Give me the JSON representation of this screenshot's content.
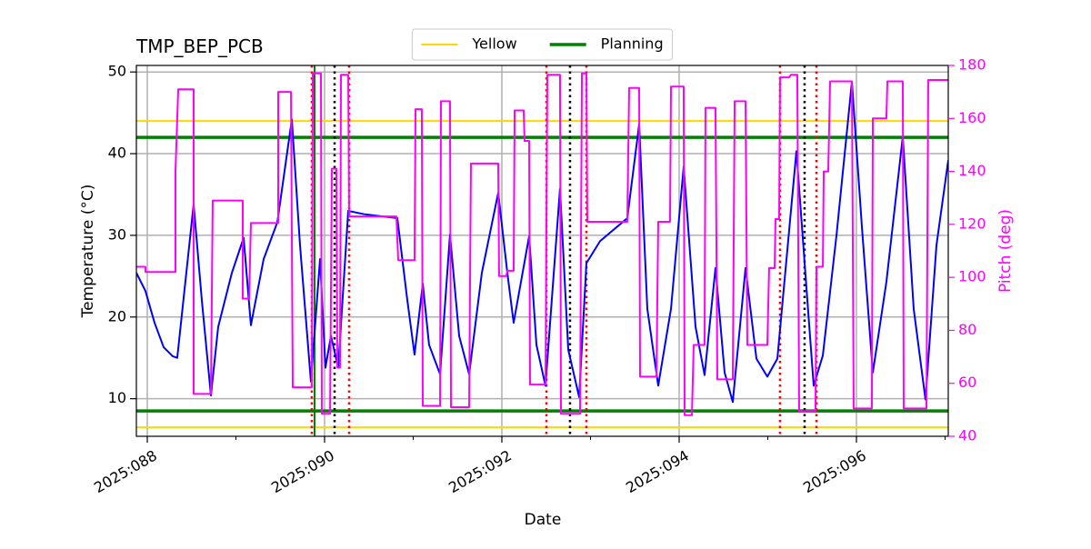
{
  "chart_data": {
    "type": "line",
    "title": "TMP_BEP_PCB",
    "xlabel": "Date",
    "ylabel": "Temperature (°C)",
    "y2label": "Pitch (deg)",
    "grid": true,
    "legend": "top",
    "xlim": [
      87.877,
      97.036
    ],
    "xticks": [
      {
        "value": 88,
        "label": "2025:088"
      },
      {
        "value": 90,
        "label": "2025:090"
      },
      {
        "value": 92,
        "label": "2025:092"
      },
      {
        "value": 94,
        "label": "2025:094"
      },
      {
        "value": 96,
        "label": "2025:096"
      }
    ],
    "xminor_ticks": [
      89,
      91,
      93,
      95,
      97
    ],
    "ylim": [
      5.4,
      50.8
    ],
    "yticks": [
      10,
      20,
      30,
      40,
      50
    ],
    "y2lim": [
      40,
      180
    ],
    "y2ticks": [
      40,
      60,
      80,
      100,
      120,
      140,
      160,
      180
    ],
    "y2color": "#ff00ff",
    "series": [
      {
        "color": "#0000ff",
        "x": [
          87.877,
          87.979,
          88.082,
          88.185,
          88.287,
          88.338,
          88.523,
          88.615,
          88.718,
          88.8,
          88.954,
          89.087,
          89.169,
          89.313,
          89.467,
          89.631,
          89.723,
          89.846,
          89.949,
          90.01,
          90.072,
          90.154,
          90.267,
          90.441,
          90.821,
          90.933,
          91.015,
          91.108,
          91.179,
          91.303,
          91.415,
          91.518,
          91.631,
          91.774,
          91.959,
          92.062,
          92.133,
          92.308,
          92.39,
          92.492,
          92.656,
          92.749,
          92.872,
          92.954,
          93.108,
          93.415,
          93.549,
          93.641,
          93.764,
          93.908,
          94.051,
          94.185,
          94.287,
          94.41,
          94.513,
          94.605,
          94.749,
          94.872,
          94.995,
          95.108,
          95.323,
          95.446,
          95.518,
          95.621,
          95.774,
          95.949,
          96.062,
          96.185,
          96.338,
          96.523,
          96.646,
          96.779,
          96.903,
          97.036
        ],
        "values": [
          25.4,
          23.2,
          19.3,
          16.3,
          15.2,
          15,
          33.8,
          22.1,
          10.4,
          18.8,
          25.4,
          29.7,
          19,
          27.1,
          31.6,
          44.2,
          28.8,
          12.1,
          27.1,
          13.8,
          17.7,
          13.8,
          33,
          32.6,
          32.1,
          22.1,
          15.4,
          24.1,
          16.6,
          13,
          30.1,
          17.7,
          13,
          25.4,
          35.2,
          25.4,
          19.3,
          29.9,
          16.6,
          11.6,
          35.7,
          16,
          10.2,
          26.6,
          29.3,
          32.1,
          43.6,
          21,
          11.6,
          21,
          38.4,
          18.8,
          12.9,
          26,
          13.2,
          9.6,
          26,
          14.9,
          12.7,
          14.9,
          40.3,
          22.1,
          11.6,
          15.3,
          29.9,
          48.8,
          31,
          13.2,
          24.3,
          42.1,
          21,
          9.9,
          28.8,
          39.2
        ]
      },
      {
        "color": "#ff00ff",
        "axis": "y2",
        "x": [
          87.877,
          87.979,
          87.979,
          88.318,
          88.318,
          88.349,
          88.523,
          88.523,
          88.718,
          88.738,
          89.077,
          89.077,
          89.149,
          89.169,
          89.477,
          89.477,
          89.621,
          89.641,
          89.856,
          89.867,
          89.959,
          89.969,
          90.062,
          90.082,
          90.133,
          90.144,
          90.174,
          90.185,
          90.267,
          90.277,
          90.81,
          90.831,
          91.015,
          91.026,
          91.097,
          91.108,
          91.303,
          91.313,
          91.415,
          91.426,
          91.631,
          91.651,
          91.959,
          91.969,
          92.051,
          92.062,
          92.133,
          92.144,
          92.246,
          92.256,
          92.308,
          92.318,
          92.492,
          92.513,
          92.656,
          92.667,
          92.882,
          92.903,
          92.954,
          92.964,
          93.415,
          93.436,
          93.549,
          93.559,
          93.744,
          93.764,
          93.897,
          93.908,
          94.051,
          94.062,
          94.144,
          94.164,
          94.287,
          94.297,
          94.41,
          94.431,
          94.605,
          94.626,
          94.749,
          94.769,
          94.995,
          95.015,
          95.077,
          95.087,
          95.128,
          95.138,
          95.241,
          95.262,
          95.333,
          95.354,
          95.538,
          95.549,
          95.621,
          95.631,
          95.682,
          95.703,
          95.949,
          95.969,
          96.174,
          96.185,
          96.338,
          96.349,
          96.523,
          96.533,
          96.79,
          96.81,
          97.036
        ],
        "values": [
          104,
          104,
          102,
          102,
          140,
          171,
          171,
          56,
          56,
          129,
          129,
          92,
          92,
          120.5,
          120.5,
          170,
          170,
          58.5,
          58.5,
          177,
          177,
          48.5,
          48.5,
          141,
          141,
          66,
          66,
          176.5,
          176.5,
          123,
          123,
          106.5,
          106.5,
          163.5,
          163.5,
          51.5,
          51.5,
          166.5,
          166.5,
          51,
          51,
          143,
          143,
          100.5,
          100.5,
          102.5,
          102.5,
          163,
          163,
          151.5,
          151.5,
          59.5,
          59.5,
          176.5,
          176.5,
          48.5,
          48.5,
          177,
          177,
          121,
          121,
          171.5,
          171.5,
          62.5,
          62.5,
          121,
          121,
          172,
          172,
          48,
          48,
          74.5,
          74.5,
          164,
          164,
          61.5,
          61.5,
          166.5,
          166.5,
          74.5,
          74.5,
          103.5,
          103.5,
          122,
          122,
          175.5,
          175.5,
          176.5,
          176.5,
          49.5,
          49.5,
          104,
          104,
          140,
          140,
          174,
          174,
          50.5,
          50.5,
          160,
          160,
          174,
          174,
          50.5,
          50.5,
          174.5,
          174.5
        ]
      }
    ],
    "hlines": [
      {
        "name": "Yellow",
        "color": "#ffd700",
        "values": [
          44,
          6.5
        ]
      },
      {
        "name": "Planning",
        "color": "#008000",
        "values": [
          42,
          8.5
        ]
      }
    ],
    "vlines": [
      {
        "color": "#008000",
        "style": "solid",
        "x": [
          89.887
        ]
      },
      {
        "color": "#ff0000",
        "style": "dotted",
        "x": [
          89.856,
          90.277,
          92.503,
          92.954,
          95.138,
          95.549
        ]
      },
      {
        "color": "#000000",
        "style": "dotted",
        "x": [
          90.113,
          92.769,
          95.415
        ]
      }
    ]
  }
}
